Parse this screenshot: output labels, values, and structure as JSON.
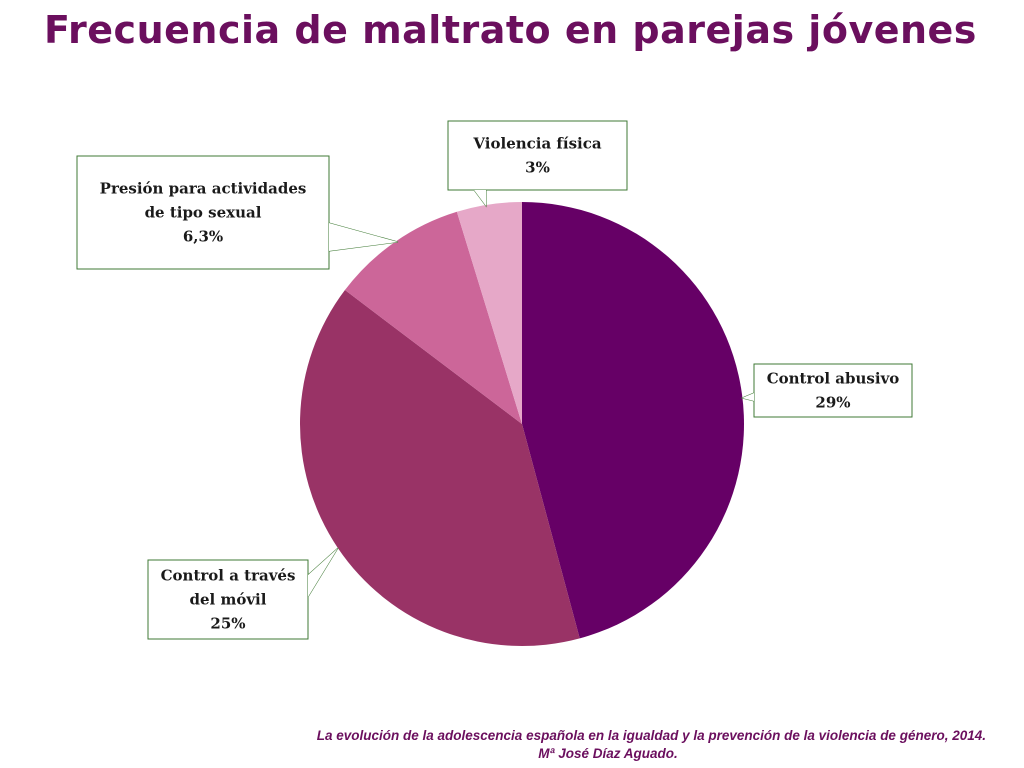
{
  "title": "Frecuencia de maltrato en parejas jóvenes",
  "chart_data": {
    "type": "pie",
    "title": "Frecuencia de maltrato en parejas jóvenes",
    "slices": [
      {
        "label_lines": [
          "Control abusivo"
        ],
        "value": 29,
        "display": "29%",
        "color": "#660066"
      },
      {
        "label_lines": [
          "Control a través",
          "del móvil"
        ],
        "value": 25,
        "display": "25%",
        "color": "#993366"
      },
      {
        "label_lines": [
          "Presión para actividades",
          "de tipo sexual"
        ],
        "value": 6.3,
        "display": "6,3%",
        "color": "#cc6699"
      },
      {
        "label_lines": [
          "Violencia física"
        ],
        "value": 3,
        "display": "3%",
        "color": "#e6a8c8"
      }
    ],
    "legend": "callouts"
  },
  "footer": {
    "line1": "La evolución de la adolescencia española en la igualdad  y la prevención de la violencia de género, 2014.",
    "line2": "Mª José Díaz Aguado."
  }
}
